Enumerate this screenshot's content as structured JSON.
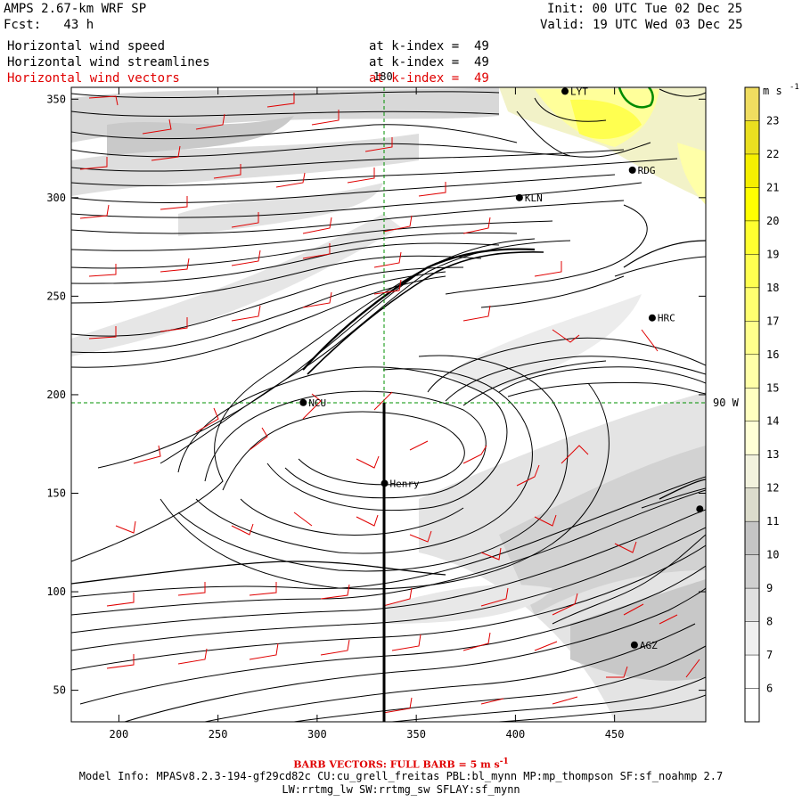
{
  "header": {
    "model": "AMPS 2.67-km WRF SP",
    "fcst": "Fcst:   43 h",
    "init": "Init: 00 UTC Tue 02 Dec 25",
    "valid": "Valid: 19 UTC Wed 03 Dec 25"
  },
  "fields": [
    {
      "name": "Horizontal wind speed",
      "level": "at k-index =  49",
      "color": "#000000"
    },
    {
      "name": "Horizontal wind streamlines",
      "level": "at k-index =  49",
      "color": "#000000"
    },
    {
      "name": "Horizontal wind vectors",
      "level": "at k-index =  49",
      "color": "#e00000"
    }
  ],
  "axes": {
    "x_ticks": [
      "200",
      "250",
      "300",
      "350",
      "400",
      "450"
    ],
    "y_ticks": [
      "350",
      "300",
      "250",
      "200",
      "150",
      "100",
      "50"
    ],
    "x_range": [
      176,
      496
    ],
    "y_range": [
      34,
      356
    ]
  },
  "gridlines": {
    "meridian_label": "180",
    "parallel_label": "90 W"
  },
  "stations": [
    {
      "label": "LYT",
      "x": 425,
      "y": 354
    },
    {
      "label": "RDG",
      "x": 459,
      "y": 314
    },
    {
      "label": "KLN",
      "x": 402,
      "y": 300
    },
    {
      "label": "HRC",
      "x": 469,
      "y": 239
    },
    {
      "label": "NCU",
      "x": 293,
      "y": 196
    },
    {
      "label": "Henry",
      "x": 334,
      "y": 155
    },
    {
      "label": "",
      "x": 493,
      "y": 142
    },
    {
      "label": "AGZ",
      "x": 460,
      "y": 73
    }
  ],
  "colorbar": {
    "unit": "m s",
    "unit_exp": "-1",
    "levels": [
      "6",
      "7",
      "8",
      "9",
      "10",
      "11",
      "12",
      "13",
      "14",
      "15",
      "16",
      "17",
      "18",
      "19",
      "20",
      "21",
      "22",
      "23"
    ],
    "colors": [
      "#ffffff",
      "#f0f0f0",
      "#e0e0e0",
      "#d0d0d0",
      "#c4c4c4",
      "#dcdccc",
      "#f2f2de",
      "#ffffd6",
      "#ffffc0",
      "#ffffa8",
      "#ffff8c",
      "#ffff70",
      "#ffff50",
      "#ffff30",
      "#ffff00",
      "#f5ef00",
      "#eadf20",
      "#f0dd60"
    ]
  },
  "footer": {
    "barb_note": "BARB VECTORS:  FULL BARB = 5 m s",
    "barb_exp": "-1",
    "model_info": "Model Info: MPASv8.2.3-194-gf29cd82c CU:cu_grell_freitas PBL:bl_mynn MP:mp_thompson SF:sf_noahmp 2.7",
    "model_info2": "LW:rrtmg_lw SW:rrtmg_sw SFLAY:sf_mynn"
  }
}
